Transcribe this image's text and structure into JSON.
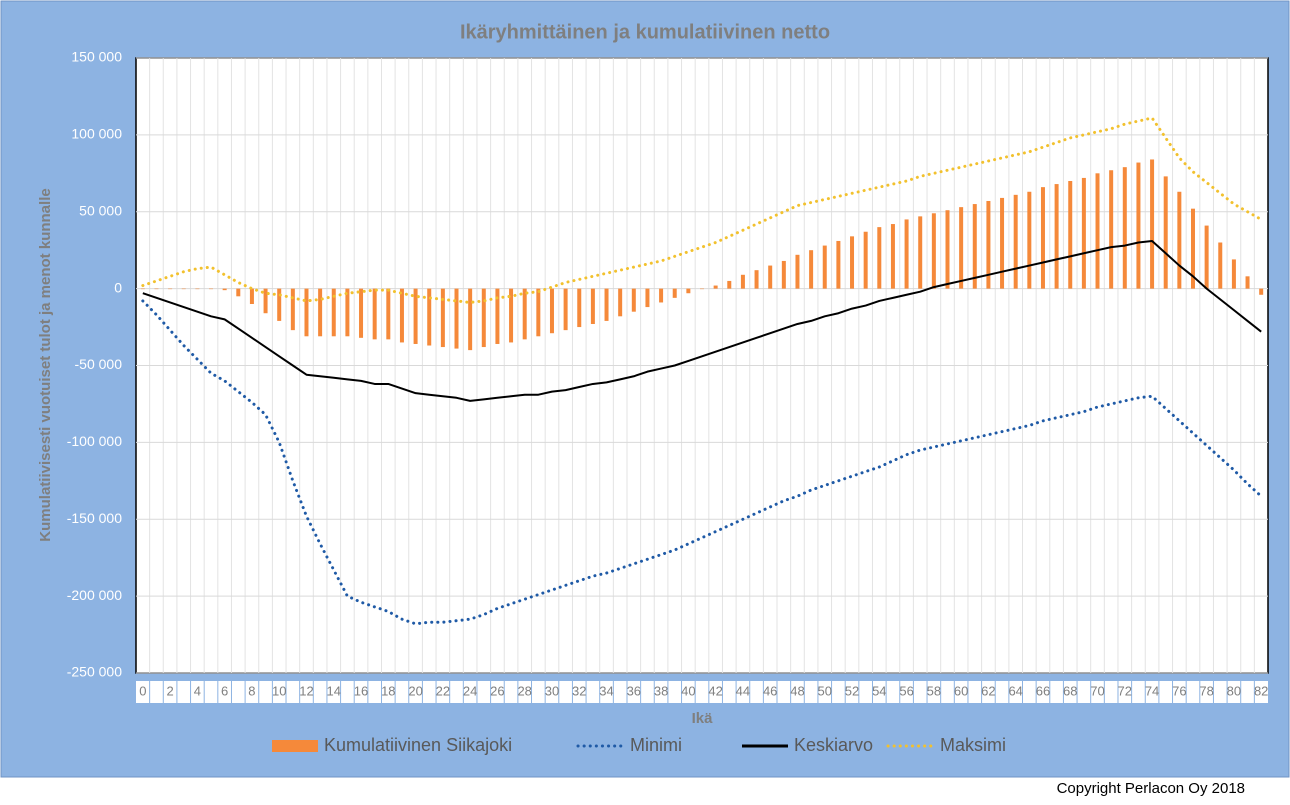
{
  "chart_data": {
    "type": "bar-line",
    "title": "Ikäryhmittäinen ja kumulatiivinen netto",
    "x_label": "Ikä",
    "y_label": "Kumulatiivisesti vuotuiset tulot ja menot kunnalle",
    "copyright": "Copyright Perlacon Oy 2018",
    "categories": [
      "0",
      null,
      "2",
      null,
      "4",
      null,
      "6",
      null,
      "8",
      null,
      "10",
      null,
      "12",
      null,
      "14",
      null,
      "16",
      null,
      "18",
      null,
      "20",
      null,
      "22",
      null,
      "24",
      null,
      "26",
      null,
      "28",
      null,
      "30",
      null,
      "32",
      null,
      "34",
      null,
      "36",
      null,
      "38",
      null,
      "40",
      null,
      "42",
      null,
      "44",
      null,
      "46",
      null,
      "48",
      null,
      "50",
      null,
      "52",
      null,
      "54",
      null,
      "56",
      null,
      "58",
      null,
      "60",
      null,
      "62",
      null,
      "64",
      null,
      "66",
      null,
      "68",
      null,
      "70",
      null,
      "72",
      null,
      "74",
      null,
      "76",
      null,
      "78",
      null,
      "80",
      null,
      "82"
    ],
    "ylim": [
      -250000,
      150000
    ],
    "yticks": [
      {
        "value": -250000,
        "label": "-250 000"
      },
      {
        "value": -200000,
        "label": "-200 000"
      },
      {
        "value": -150000,
        "label": "-150 000"
      },
      {
        "value": -100000,
        "label": "-100 000"
      },
      {
        "value": -50000,
        "label": "-50 000"
      },
      0,
      {
        "value": 50000,
        "label": "50 000"
      },
      {
        "value": 100000,
        "label": "100 000"
      },
      {
        "value": 150000,
        "label": "150 000"
      }
    ],
    "grid": true,
    "legend": "bottom",
    "series": [
      {
        "name": "Kumulatiivinen Siikajoki",
        "kind": "bar",
        "color": "#f5893a",
        "values": [
          0,
          0,
          0,
          0,
          0,
          0,
          -1000,
          -5000,
          -10000,
          -16000,
          -21000,
          -27000,
          -31000,
          -31000,
          -31000,
          -31000,
          -32000,
          -33000,
          -33000,
          -35000,
          -36000,
          -37000,
          -38000,
          -39000,
          -40000,
          -38000,
          -36000,
          -35000,
          -33000,
          -31000,
          -29000,
          -27000,
          -25000,
          -23000,
          -21000,
          -18000,
          -15000,
          -12000,
          -9000,
          -6000,
          -3000,
          0,
          2000,
          5000,
          9000,
          12000,
          15000,
          18000,
          22000,
          25000,
          28000,
          31000,
          34000,
          37000,
          40000,
          42000,
          45000,
          47000,
          49000,
          51000,
          53000,
          55000,
          57000,
          59000,
          61000,
          63000,
          66000,
          68000,
          70000,
          72000,
          75000,
          77000,
          79000,
          82000,
          84000,
          73000,
          63000,
          52000,
          41000,
          30000,
          19000,
          8000,
          -4000
        ]
      },
      {
        "name": "Minimi",
        "kind": "line",
        "dash": "dotted",
        "color": "#1f5aa6",
        "values": [
          -8000,
          -17000,
          -27000,
          -37000,
          -46000,
          -55000,
          -60000,
          -67000,
          -74000,
          -82000,
          -100000,
          -125000,
          -148000,
          -166000,
          -183000,
          -200000,
          -204000,
          -207000,
          -210000,
          -215000,
          -218000,
          -217000,
          -217000,
          -216000,
          -215000,
          -212000,
          -208000,
          -205000,
          -202000,
          -199000,
          -196000,
          -193000,
          -190000,
          -187000,
          -185000,
          -182000,
          -179000,
          -176000,
          -173000,
          -170000,
          -166000,
          -162000,
          -158000,
          -154000,
          -150000,
          -146000,
          -142000,
          -138000,
          -135000,
          -131000,
          -128000,
          -125000,
          -122000,
          -119000,
          -116000,
          -112000,
          -108000,
          -105000,
          -103000,
          -101000,
          -99000,
          -97000,
          -95000,
          -93000,
          -91000,
          -89000,
          -86000,
          -84000,
          -82000,
          -80000,
          -77000,
          -75000,
          -73000,
          -71000,
          -70000,
          -78000,
          -86000,
          -94000,
          -102000,
          -110000,
          -118000,
          -127000,
          -135000
        ]
      },
      {
        "name": "Keskiarvo",
        "kind": "line",
        "dash": "solid",
        "color": "#000000",
        "values": [
          -3000,
          -6000,
          -9000,
          -12000,
          -15000,
          -18000,
          -20000,
          -26000,
          -32000,
          -38000,
          -44000,
          -50000,
          -56000,
          -57000,
          -58000,
          -59000,
          -60000,
          -62000,
          -62000,
          -65000,
          -68000,
          -69000,
          -70000,
          -71000,
          -73000,
          -72000,
          -71000,
          -70000,
          -69000,
          -69000,
          -67000,
          -66000,
          -64000,
          -62000,
          -61000,
          -59000,
          -57000,
          -54000,
          -52000,
          -50000,
          -47000,
          -44000,
          -41000,
          -38000,
          -35000,
          -32000,
          -29000,
          -26000,
          -23000,
          -21000,
          -18000,
          -16000,
          -13000,
          -11000,
          -8000,
          -6000,
          -4000,
          -2000,
          1000,
          3000,
          5000,
          7000,
          9000,
          11000,
          13000,
          15000,
          17000,
          19000,
          21000,
          23000,
          25000,
          27000,
          28000,
          30000,
          31000,
          23000,
          15000,
          8000,
          0,
          -7000,
          -14000,
          -21000,
          -28000
        ]
      },
      {
        "name": "Maksimi",
        "kind": "line",
        "dash": "dotted",
        "color": "#f2c12e",
        "values": [
          2000,
          5000,
          8000,
          11000,
          13000,
          14000,
          9000,
          4000,
          0,
          -3000,
          -4000,
          -6000,
          -8000,
          -7000,
          -5000,
          -3000,
          -2000,
          -1000,
          -1000,
          -3000,
          -5000,
          -6000,
          -7000,
          -8000,
          -9000,
          -8000,
          -6000,
          -5000,
          -3000,
          -2000,
          1000,
          4000,
          6000,
          8000,
          10000,
          12000,
          14000,
          16000,
          18000,
          21000,
          24000,
          27000,
          30000,
          34000,
          38000,
          42000,
          46000,
          50000,
          54000,
          56000,
          58000,
          60000,
          62000,
          64000,
          66000,
          68000,
          70000,
          73000,
          75000,
          77000,
          79000,
          81000,
          83000,
          85000,
          87000,
          89000,
          92000,
          95000,
          98000,
          100000,
          102000,
          104000,
          107000,
          109000,
          111000,
          98000,
          85000,
          76000,
          69000,
          62000,
          55000,
          50000,
          45000
        ]
      }
    ]
  }
}
